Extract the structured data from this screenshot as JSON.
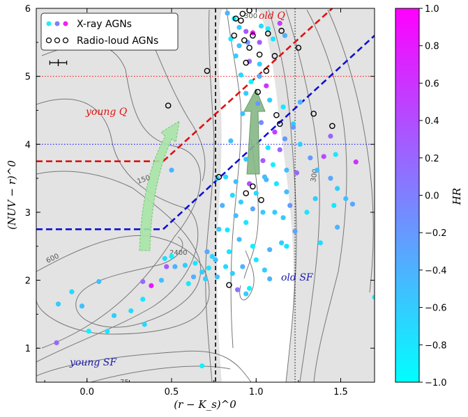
{
  "chart_data": {
    "type": "scatter",
    "title": "",
    "xlabel": "(r − K_s)^0",
    "ylabel": "(NUV − r)^0",
    "xlim": [
      -0.3,
      1.7
    ],
    "ylim": [
      0.5,
      6.0
    ],
    "xticks": [
      "0.0",
      "0.5",
      "1.0",
      "1.5"
    ],
    "xtick_values": [
      0.0,
      0.5,
      1.0,
      1.5
    ],
    "yticks": [
      "1",
      "2",
      "3",
      "4",
      "5",
      "6"
    ],
    "ytick_values": [
      1,
      2,
      3,
      4,
      5,
      6
    ],
    "colorbar": {
      "label": "HR",
      "range": [
        -1.0,
        1.0
      ],
      "ticks": [
        "1.0",
        "0.8",
        "0.6",
        "0.4",
        "0.2",
        "0.0",
        "−0.2",
        "−0.4",
        "−0.6",
        "−0.8",
        "−1.0"
      ],
      "tick_values": [
        1.0,
        0.8,
        0.6,
        0.4,
        0.2,
        0.0,
        -0.2,
        -0.4,
        -0.6,
        -0.8,
        -1.0
      ],
      "colormap": [
        "#00ffff",
        "#ff00ff"
      ]
    },
    "legend": {
      "placement": "top-left",
      "entries": [
        {
          "label": "X-ray AGNs",
          "marker": "filled circles colored by HR"
        },
        {
          "label": "Radio-loud AGNs",
          "marker": "open black circles"
        }
      ]
    },
    "background_color": "#e3e3e3",
    "contour_labels": [
      "150",
      "300",
      "600",
      "2400",
      "75",
      "300"
    ],
    "region_labels": [
      {
        "text": "old Q",
        "color": "#e01010"
      },
      {
        "text": "young Q",
        "color": "#e01010"
      },
      {
        "text": "old SF",
        "color": "#1a1aaa"
      },
      {
        "text": "young SF",
        "color": "#1a1aaa"
      }
    ],
    "reference_lines": [
      {
        "orientation": "horizontal",
        "value": 5.0,
        "color": "#ff0000",
        "style": "dotted"
      },
      {
        "orientation": "horizontal",
        "value": 4.0,
        "color": "#0000ff",
        "style": "dotted"
      },
      {
        "orientation": "vertical",
        "value": 0.76,
        "color": "#000000",
        "style": "dashed"
      },
      {
        "orientation": "vertical",
        "value": 1.23,
        "color": "#000000",
        "style": "dotted"
      }
    ],
    "boundaries": [
      {
        "name": "red",
        "color": "#e01010",
        "points": [
          [
            -0.3,
            3.75
          ],
          [
            0.45,
            3.75
          ],
          [
            1.45,
            6.0
          ]
        ]
      },
      {
        "name": "blue",
        "color": "#1010d0",
        "points": [
          [
            -0.3,
            2.75
          ],
          [
            0.45,
            2.75
          ],
          [
            1.7,
            5.6
          ]
        ]
      }
    ],
    "error_bar": {
      "x": [
        -0.22,
        -0.12
      ],
      "y": 5.2,
      "yerr": 0.05
    },
    "arrows": [
      {
        "from": [
          0.34,
          2.4
        ],
        "to": [
          0.54,
          4.3
        ],
        "color": "#9ad89a"
      },
      {
        "from": [
          0.98,
          3.6
        ],
        "to": [
          1.0,
          4.75
        ],
        "color": "#6a9f6a"
      }
    ],
    "series": [
      {
        "name": "X-ray AGNs",
        "points": [
          [
            0.83,
            5.93,
            -0.4
          ],
          [
            0.87,
            5.85,
            -0.9
          ],
          [
            0.9,
            5.72,
            -0.6
          ],
          [
            0.94,
            5.66,
            0.3
          ],
          [
            0.98,
            5.64,
            0.9
          ],
          [
            1.03,
            5.74,
            -0.7
          ],
          [
            1.07,
            5.7,
            -0.9
          ],
          [
            1.14,
            5.78,
            0.5
          ],
          [
            0.85,
            5.55,
            -0.8
          ],
          [
            0.9,
            5.45,
            -0.5
          ],
          [
            0.95,
            5.5,
            -0.2
          ],
          [
            1.02,
            5.5,
            0.3
          ],
          [
            1.1,
            5.55,
            -0.8
          ],
          [
            1.17,
            5.6,
            -0.4
          ],
          [
            0.88,
            5.3,
            -0.6
          ],
          [
            0.96,
            5.22,
            0.2
          ],
          [
            1.02,
            5.18,
            -0.6
          ],
          [
            0.91,
            5.02,
            -0.7
          ],
          [
            1.02,
            5.0,
            -0.4
          ],
          [
            0.97,
            4.92,
            -0.9
          ],
          [
            1.06,
            4.86,
            0.6
          ],
          [
            0.94,
            4.75,
            -0.6
          ],
          [
            1.01,
            4.6,
            -0.2
          ],
          [
            1.08,
            4.65,
            -0.6
          ],
          [
            1.16,
            4.55,
            -0.8
          ],
          [
            0.92,
            4.45,
            -0.5
          ],
          [
            1.03,
            4.32,
            -0.1
          ],
          [
            1.11,
            4.18,
            0.5
          ],
          [
            1.17,
            4.08,
            -0.2
          ],
          [
            1.22,
            4.3,
            -0.6
          ],
          [
            0.85,
            4.05,
            -0.5
          ],
          [
            1.07,
            3.95,
            -0.8
          ],
          [
            1.14,
            3.92,
            0.2
          ],
          [
            1.22,
            4.25,
            -0.2
          ],
          [
            1.26,
            4.62,
            -0.4
          ],
          [
            1.26,
            4.0,
            -0.6
          ],
          [
            0.5,
            3.62,
            -0.4
          ],
          [
            0.94,
            3.78,
            -0.6
          ],
          [
            1.04,
            3.76,
            0.3
          ],
          [
            1.1,
            3.7,
            -0.9
          ],
          [
            1.18,
            3.62,
            -0.5
          ],
          [
            1.24,
            3.58,
            0.2
          ],
          [
            1.32,
            3.8,
            -0.2
          ],
          [
            1.4,
            3.82,
            0.4
          ],
          [
            1.44,
            4.12,
            0.2
          ],
          [
            1.36,
            3.62,
            -0.5
          ],
          [
            1.47,
            3.85,
            -0.8
          ],
          [
            1.59,
            3.74,
            0.6
          ],
          [
            1.44,
            3.5,
            -0.3
          ],
          [
            1.48,
            3.35,
            -0.6
          ],
          [
            1.53,
            3.2,
            -0.5
          ],
          [
            1.46,
            3.1,
            -0.8
          ],
          [
            1.57,
            3.12,
            -0.3
          ],
          [
            1.35,
            3.2,
            -0.6
          ],
          [
            1.3,
            3.0,
            -0.8
          ],
          [
            1.38,
            2.55,
            -0.7
          ],
          [
            0.82,
            3.52,
            -0.7
          ],
          [
            0.88,
            3.45,
            -0.5
          ],
          [
            0.96,
            3.42,
            0.4
          ],
          [
            1.06,
            3.48,
            -0.4
          ],
          [
            1.12,
            3.42,
            -0.8
          ],
          [
            1.18,
            3.3,
            -0.5
          ],
          [
            1.2,
            3.1,
            -0.2
          ],
          [
            1.16,
            2.92,
            -0.6
          ],
          [
            1.23,
            2.72,
            -0.3
          ],
          [
            1.18,
            2.5,
            -0.8
          ],
          [
            1.15,
            2.55,
            -0.6
          ],
          [
            1.08,
            2.45,
            -0.4
          ],
          [
            0.98,
            2.5,
            -0.9
          ],
          [
            0.9,
            2.6,
            -0.5
          ],
          [
            0.84,
            2.42,
            -0.8
          ],
          [
            0.78,
            2.75,
            -0.6
          ],
          [
            0.8,
            3.1,
            -0.4
          ],
          [
            0.86,
            3.25,
            -0.7
          ],
          [
            0.91,
            3.15,
            -0.6
          ],
          [
            0.98,
            3.05,
            -0.3
          ],
          [
            1.04,
            3.0,
            -0.6
          ],
          [
            0.94,
            2.85,
            -0.8
          ],
          [
            0.88,
            2.95,
            -0.5
          ],
          [
            0.82,
            2.2,
            -0.7
          ],
          [
            0.86,
            2.1,
            -0.6
          ],
          [
            0.92,
            2.2,
            -0.4
          ],
          [
            1.0,
            2.3,
            -0.8
          ],
          [
            1.05,
            2.15,
            -0.6
          ],
          [
            1.08,
            2.02,
            -0.4
          ],
          [
            0.96,
            1.88,
            -0.9
          ],
          [
            0.89,
            1.86,
            0.1
          ],
          [
            0.94,
            1.8,
            -0.6
          ],
          [
            0.77,
            2.05,
            -0.5
          ],
          [
            0.72,
            2.18,
            -0.8
          ],
          [
            0.7,
            2.02,
            -0.6
          ],
          [
            0.63,
            2.05,
            -0.4
          ],
          [
            0.6,
            1.95,
            -0.8
          ],
          [
            0.68,
            2.12,
            -0.6
          ],
          [
            0.76,
            2.3,
            -0.5
          ],
          [
            0.74,
            2.35,
            -0.7
          ],
          [
            0.71,
            2.42,
            -0.3
          ],
          [
            0.64,
            2.25,
            -0.8
          ],
          [
            0.58,
            2.22,
            -0.6
          ],
          [
            0.52,
            2.2,
            -0.4
          ],
          [
            0.5,
            2.35,
            -0.9
          ],
          [
            0.46,
            2.32,
            -0.7
          ],
          [
            0.47,
            2.2,
            0.3
          ],
          [
            0.44,
            2.0,
            -0.5
          ],
          [
            0.38,
            1.92,
            0.8
          ],
          [
            0.33,
            1.98,
            0.2
          ],
          [
            0.33,
            1.72,
            -0.8
          ],
          [
            0.26,
            1.55,
            -0.7
          ],
          [
            0.16,
            1.48,
            -0.6
          ],
          [
            0.12,
            1.25,
            -0.8
          ],
          [
            0.01,
            1.25,
            -0.9
          ],
          [
            -0.03,
            1.62,
            -0.5
          ],
          [
            -0.18,
            1.08,
            0.2
          ],
          [
            -0.17,
            1.65,
            -0.6
          ],
          [
            -0.09,
            1.83,
            -0.7
          ],
          [
            0.07,
            1.98,
            -0.5
          ],
          [
            0.34,
            1.35,
            -0.7
          ],
          [
            0.68,
            0.74,
            -0.9
          ],
          [
            1.7,
            1.75,
            -0.9
          ],
          [
            0.83,
            2.74,
            -0.8
          ],
          [
            1.11,
            3.0,
            -0.6
          ],
          [
            1.0,
            3.28,
            -0.7
          ],
          [
            1.05,
            3.52,
            -0.5
          ],
          [
            0.77,
            3.5,
            -0.6
          ],
          [
            1.48,
            2.78,
            -0.4
          ]
        ]
      },
      {
        "name": "Radio-loud AGNs",
        "points": [
          [
            0.92,
            5.92
          ],
          [
            0.96,
            5.97
          ],
          [
            0.88,
            5.85
          ],
          [
            0.91,
            5.82
          ],
          [
            1.07,
            5.63
          ],
          [
            0.87,
            5.6
          ],
          [
            1.15,
            5.67
          ],
          [
            0.93,
            5.53
          ],
          [
            0.98,
            5.6
          ],
          [
            0.96,
            5.42
          ],
          [
            1.02,
            5.32
          ],
          [
            1.11,
            5.3
          ],
          [
            1.25,
            5.42
          ],
          [
            0.94,
            5.2
          ],
          [
            0.71,
            5.08
          ],
          [
            1.06,
            5.08
          ],
          [
            1.01,
            4.77
          ],
          [
            0.48,
            4.57
          ],
          [
            1.12,
            4.43
          ],
          [
            1.34,
            4.45
          ],
          [
            1.14,
            4.3
          ],
          [
            1.45,
            4.27
          ],
          [
            0.78,
            3.52
          ],
          [
            0.98,
            3.38
          ],
          [
            0.94,
            3.28
          ],
          [
            1.03,
            3.18
          ],
          [
            0.84,
            1.93
          ]
        ]
      }
    ]
  }
}
